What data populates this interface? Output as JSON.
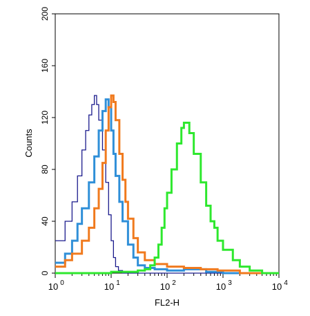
{
  "chart_data": {
    "type": "line",
    "title": "",
    "xlabel": "FL2-H",
    "ylabel": "Counts",
    "x_scale": "log",
    "xlim": [
      1,
      10000
    ],
    "ylim": [
      0,
      200
    ],
    "x_ticks": [
      {
        "value": 1,
        "base": "10",
        "exp": "0"
      },
      {
        "value": 10,
        "base": "10",
        "exp": "1"
      },
      {
        "value": 100,
        "base": "10",
        "exp": "2"
      },
      {
        "value": 1000,
        "base": "10",
        "exp": "3"
      },
      {
        "value": 10000,
        "base": "10",
        "exp": "4"
      }
    ],
    "y_ticks": [
      0,
      40,
      80,
      120,
      160,
      200
    ],
    "grid": false,
    "legend": "none",
    "series": [
      {
        "color": "#1a1a8c",
        "points": [
          [
            1,
            25
          ],
          [
            1.5,
            40
          ],
          [
            2,
            55
          ],
          [
            2.5,
            75
          ],
          [
            3,
            95
          ],
          [
            3.5,
            110
          ],
          [
            4,
            122
          ],
          [
            4.5,
            130
          ],
          [
            5,
            137
          ],
          [
            5.5,
            130
          ],
          [
            6,
            118
          ],
          [
            7,
            95
          ],
          [
            8,
            70
          ],
          [
            9,
            45
          ],
          [
            10,
            25
          ],
          [
            11,
            12
          ],
          [
            12,
            5
          ],
          [
            13.5,
            2
          ],
          [
            16,
            0
          ],
          [
            10000,
            0
          ]
        ]
      },
      {
        "color": "#2f8fd8",
        "points": [
          [
            1,
            8
          ],
          [
            1.5,
            15
          ],
          [
            2,
            25
          ],
          [
            2.5,
            38
          ],
          [
            3,
            50
          ],
          [
            4,
            70
          ],
          [
            5,
            90
          ],
          [
            6,
            110
          ],
          [
            7,
            125
          ],
          [
            8,
            134
          ],
          [
            9,
            128
          ],
          [
            10,
            110
          ],
          [
            11,
            92
          ],
          [
            12,
            75
          ],
          [
            14,
            55
          ],
          [
            16,
            40
          ],
          [
            20,
            22
          ],
          [
            25,
            12
          ],
          [
            30,
            6
          ],
          [
            40,
            4
          ],
          [
            60,
            3
          ],
          [
            100,
            2
          ],
          [
            200,
            3
          ],
          [
            500,
            1
          ],
          [
            1000,
            0
          ],
          [
            10000,
            0
          ]
        ]
      },
      {
        "color": "#f07a1e",
        "points": [
          [
            1,
            5
          ],
          [
            1.5,
            10
          ],
          [
            2,
            15
          ],
          [
            3,
            25
          ],
          [
            4,
            35
          ],
          [
            5,
            50
          ],
          [
            6,
            65
          ],
          [
            7,
            85
          ],
          [
            8,
            110
          ],
          [
            9,
            128
          ],
          [
            10,
            137
          ],
          [
            11,
            132
          ],
          [
            12,
            118
          ],
          [
            14,
            92
          ],
          [
            16,
            72
          ],
          [
            18,
            55
          ],
          [
            20,
            42
          ],
          [
            25,
            27
          ],
          [
            30,
            16
          ],
          [
            40,
            10
          ],
          [
            60,
            7
          ],
          [
            100,
            5
          ],
          [
            200,
            4
          ],
          [
            400,
            3
          ],
          [
            800,
            2
          ],
          [
            2000,
            0
          ],
          [
            10000,
            0
          ]
        ]
      },
      {
        "color": "#2ee82e",
        "points": [
          [
            1,
            0
          ],
          [
            10,
            1
          ],
          [
            30,
            2
          ],
          [
            40,
            3
          ],
          [
            50,
            6
          ],
          [
            60,
            12
          ],
          [
            70,
            22
          ],
          [
            80,
            35
          ],
          [
            90,
            50
          ],
          [
            100,
            62
          ],
          [
            120,
            80
          ],
          [
            150,
            100
          ],
          [
            180,
            112
          ],
          [
            200,
            116
          ],
          [
            250,
            108
          ],
          [
            300,
            92
          ],
          [
            400,
            70
          ],
          [
            500,
            52
          ],
          [
            600,
            40
          ],
          [
            700,
            35
          ],
          [
            800,
            25
          ],
          [
            1000,
            18
          ],
          [
            1500,
            10
          ],
          [
            2000,
            5
          ],
          [
            3000,
            2
          ],
          [
            5000,
            0
          ],
          [
            10000,
            0
          ]
        ]
      }
    ]
  }
}
